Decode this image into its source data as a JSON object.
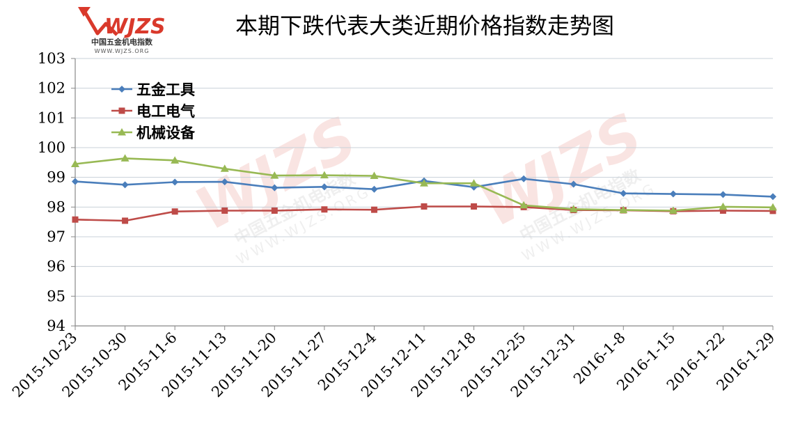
{
  "logo": {
    "mark": "WJZS",
    "name": "中国五金机电指数",
    "url": "WWW.WJZS.ORG"
  },
  "watermark": {
    "mark": "WJZS",
    "name": "中国五金机电指数",
    "url": "WWW.WJZS.ORG"
  },
  "chart_data": {
    "type": "line",
    "title": "本期下跌代表大类近期价格指数走势图",
    "xlabel": "",
    "ylabel": "",
    "ylim": [
      94,
      103
    ],
    "yticks": [
      "94",
      "95",
      "96",
      "97",
      "98",
      "99",
      "100",
      "101",
      "102",
      "103"
    ],
    "grid": true,
    "legend": "top-left",
    "categories": [
      "2015-10-23",
      "2015-10-30",
      "2015-11-6",
      "2015-11-13",
      "2015-11-20",
      "2015-11-27",
      "2015-12-4",
      "2015-12-11",
      "2015-12-18",
      "2015-12-25",
      "2015-12-31",
      "2016-1-8",
      "2016-1-15",
      "2016-1-22",
      "2016-1-29"
    ],
    "series": [
      {
        "name": "五金工具",
        "color": "#4a7ebb",
        "marker": "diamond",
        "values": [
          98.86,
          98.75,
          98.84,
          98.85,
          98.65,
          98.68,
          98.6,
          98.88,
          98.67,
          98.95,
          98.77,
          98.46,
          98.44,
          98.42,
          98.35
        ]
      },
      {
        "name": "电工电气",
        "color": "#be4b48",
        "marker": "square",
        "values": [
          97.58,
          97.54,
          97.85,
          97.88,
          97.88,
          97.92,
          97.91,
          98.02,
          98.02,
          98.0,
          97.9,
          97.89,
          97.86,
          97.88,
          97.87
        ]
      },
      {
        "name": "机械设备",
        "color": "#98b954",
        "marker": "triangle",
        "values": [
          99.45,
          99.64,
          99.57,
          99.29,
          99.06,
          99.07,
          99.05,
          98.8,
          98.8,
          98.06,
          97.93,
          97.9,
          97.88,
          98.01,
          97.99
        ]
      }
    ]
  }
}
